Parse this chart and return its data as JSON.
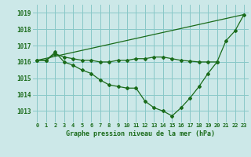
{
  "title": "Graphe pression niveau de la mer (hPa)",
  "background_color": "#cce8e8",
  "line_color": "#1a6b1a",
  "grid_color": "#88c8c8",
  "xlim": [
    -0.5,
    23.5
  ],
  "ylim": [
    1012.3,
    1019.5
  ],
  "yticks": [
    1013,
    1014,
    1015,
    1016,
    1017,
    1018,
    1019
  ],
  "xticks": [
    0,
    1,
    2,
    3,
    4,
    5,
    6,
    7,
    8,
    9,
    10,
    11,
    12,
    13,
    14,
    15,
    16,
    17,
    18,
    19,
    20,
    21,
    22,
    23
  ],
  "series": [
    {
      "x": [
        0,
        1,
        2,
        3,
        4,
        5,
        6,
        7,
        8,
        9,
        10,
        11,
        12,
        13,
        14,
        15,
        16,
        17,
        18,
        19,
        20,
        21,
        22,
        23
      ],
      "y": [
        1016.1,
        1016.1,
        1016.6,
        1016.0,
        1015.8,
        1015.5,
        1015.3,
        1014.9,
        1014.6,
        1014.5,
        1014.4,
        1014.4,
        1013.6,
        1013.2,
        1013.0,
        1012.7,
        1013.2,
        1013.8,
        1014.5,
        1015.3,
        1016.0,
        1017.3,
        1017.9,
        1018.9
      ]
    },
    {
      "x": [
        0,
        1,
        2,
        3,
        4,
        5,
        6,
        7,
        8,
        9,
        10,
        11,
        12,
        13,
        14,
        15,
        16,
        17,
        18,
        19,
        20
      ],
      "y": [
        1016.1,
        1016.1,
        1016.5,
        1016.3,
        1016.2,
        1016.1,
        1016.1,
        1016.0,
        1016.0,
        1016.1,
        1016.1,
        1016.2,
        1016.2,
        1016.3,
        1016.3,
        1016.2,
        1016.1,
        1016.05,
        1016.0,
        1016.0,
        1016.0
      ]
    },
    {
      "x": [
        0,
        23
      ],
      "y": [
        1016.1,
        1018.9
      ]
    }
  ]
}
